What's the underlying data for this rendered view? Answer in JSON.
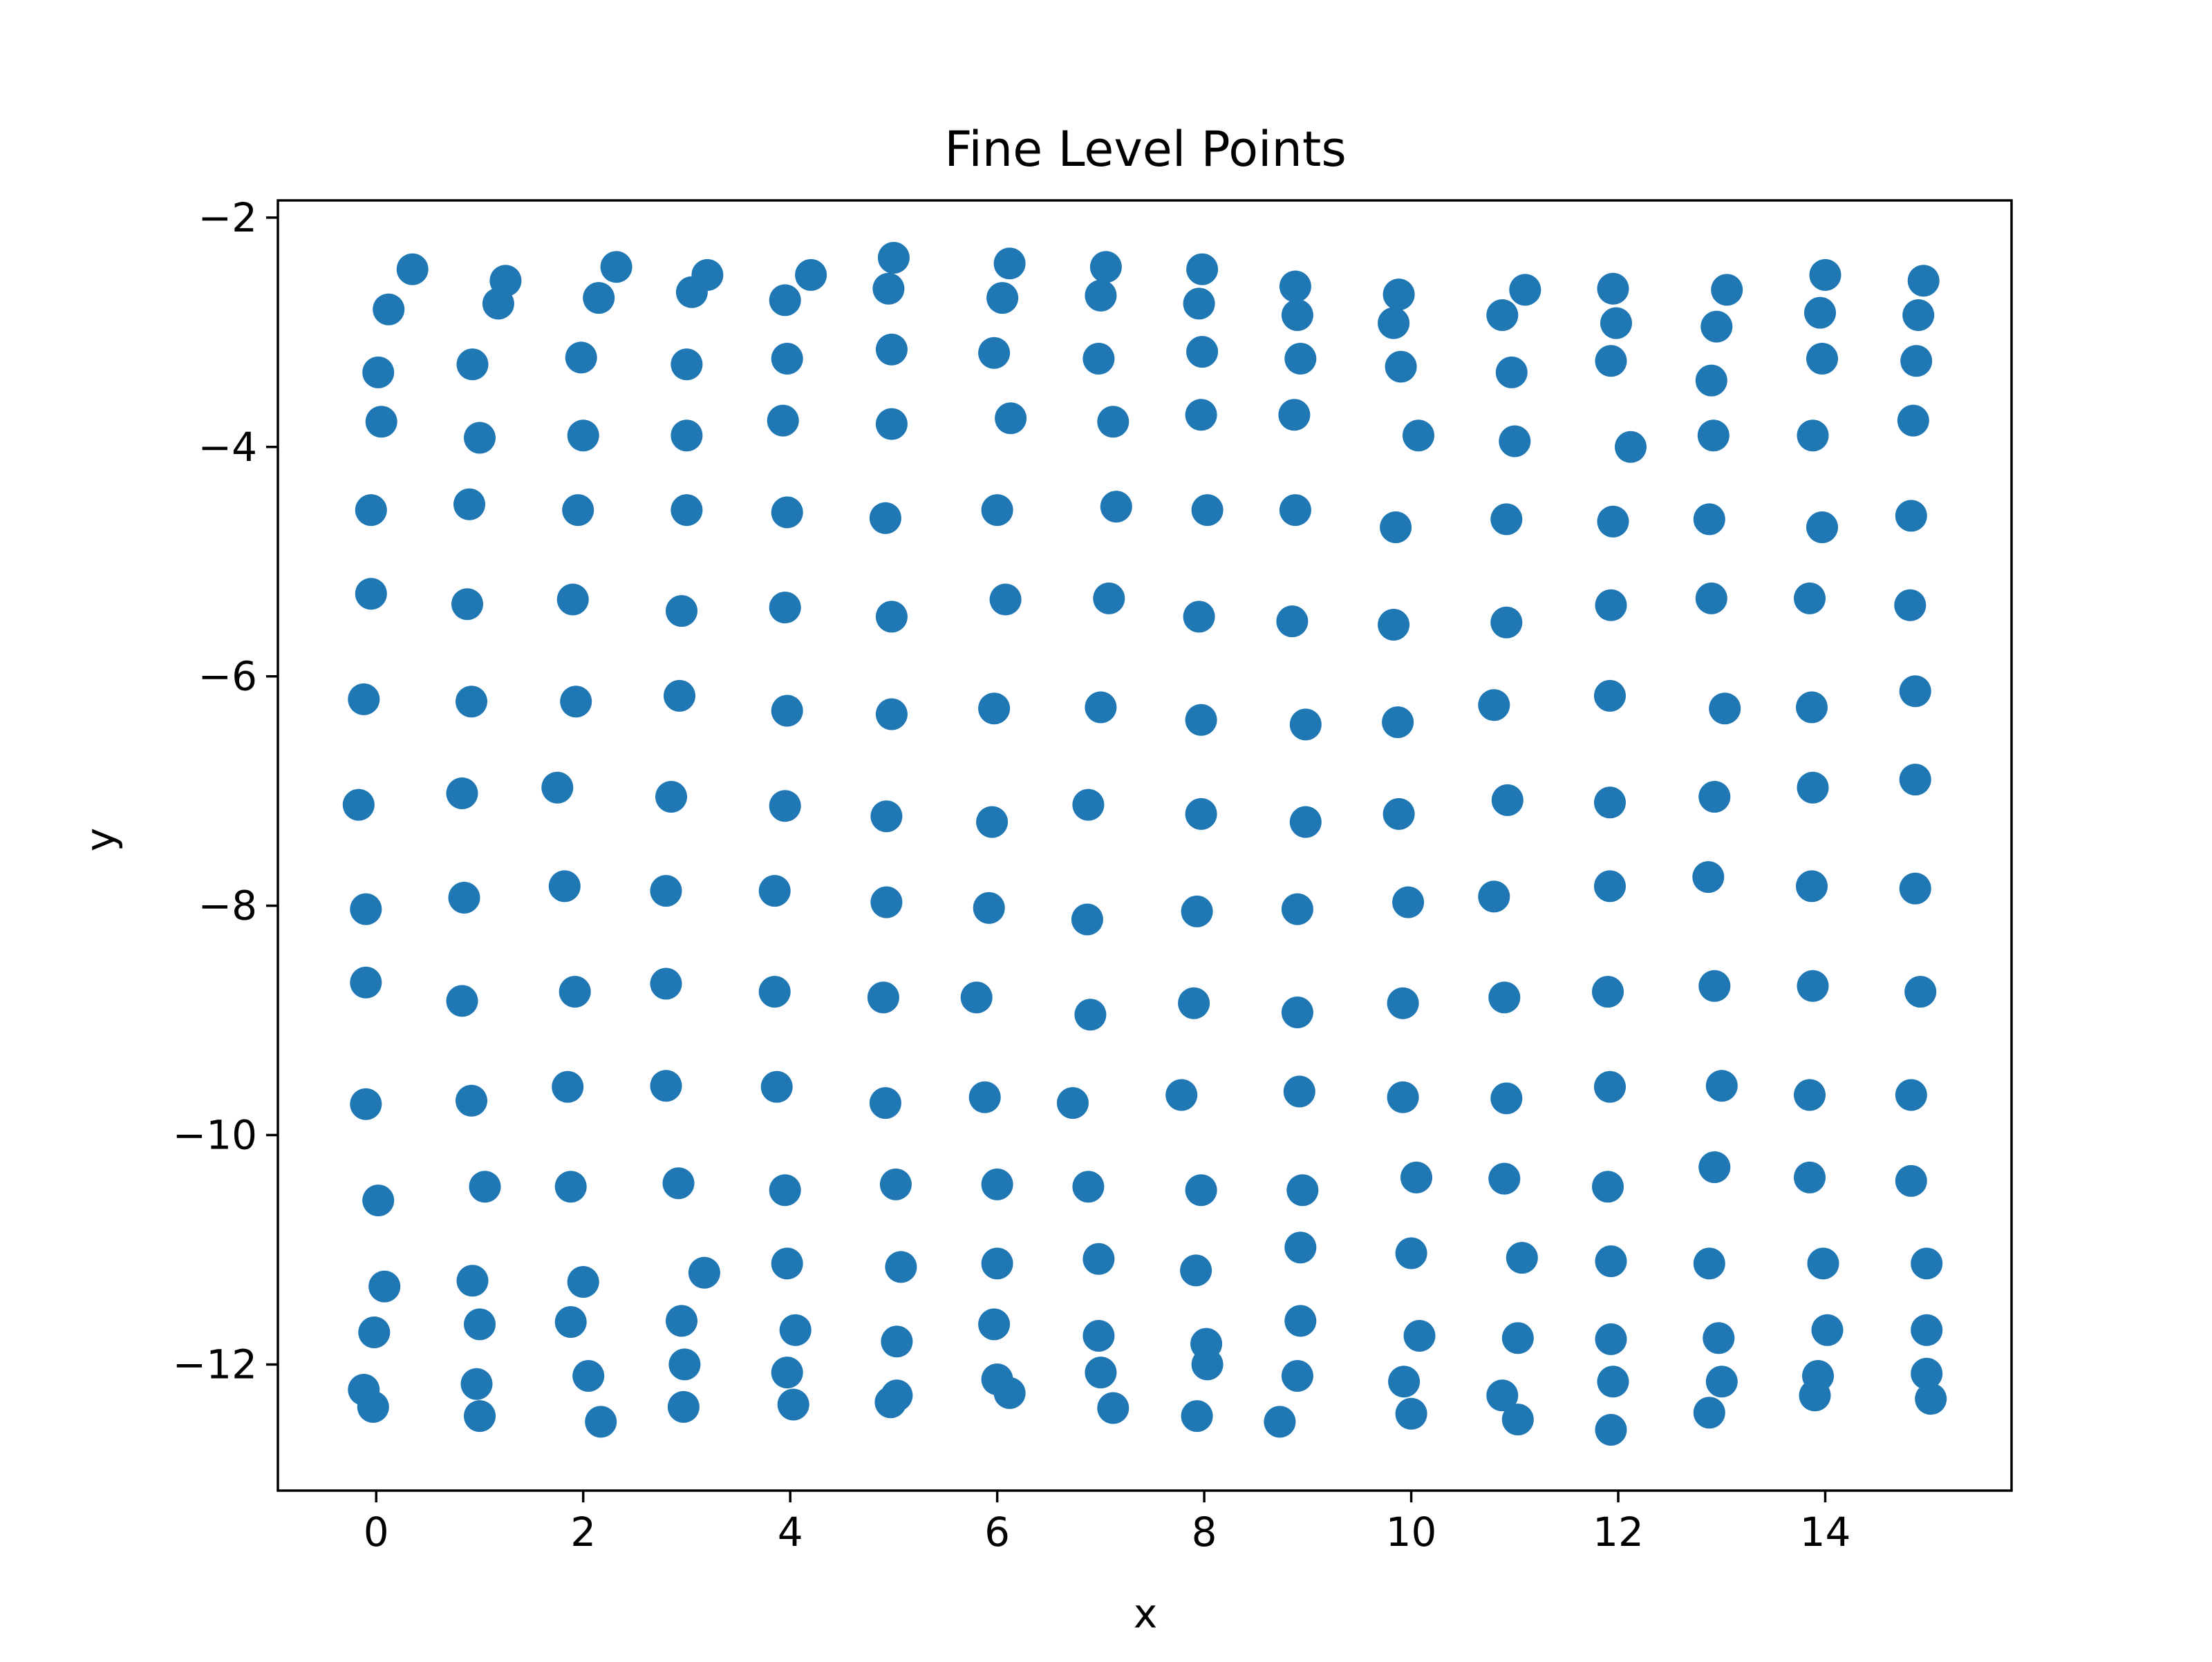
{
  "chart_data": {
    "type": "scatter",
    "title": "Fine Level Points",
    "xlabel": "x",
    "ylabel": "y",
    "xlim": [
      -0.95,
      15.8
    ],
    "ylim": [
      -13.1,
      -1.85
    ],
    "xticks": [
      0,
      2,
      4,
      6,
      8,
      10,
      12,
      14
    ],
    "yticks": [
      -2,
      -4,
      -6,
      -8,
      -10,
      -12
    ],
    "xtick_labels": [
      "0",
      "2",
      "4",
      "6",
      "8",
      "10",
      "12",
      "14"
    ],
    "ytick_labels": [
      "−2",
      "−4",
      "−6",
      "−8",
      "−10",
      "−12"
    ],
    "grid": false,
    "marker_color": "#1f77b4",
    "series": [
      {
        "points": [
          [
            0.35,
            -2.45
          ],
          [
            1.25,
            -2.55
          ],
          [
            2.32,
            -2.43
          ],
          [
            3.2,
            -2.5
          ],
          [
            4.2,
            -2.5
          ],
          [
            5.0,
            -2.35
          ],
          [
            6.12,
            -2.4
          ],
          [
            7.05,
            -2.43
          ],
          [
            7.98,
            -2.45
          ],
          [
            8.88,
            -2.6
          ],
          [
            9.88,
            -2.67
          ],
          [
            11.1,
            -2.63
          ],
          [
            11.95,
            -2.62
          ],
          [
            13.05,
            -2.63
          ],
          [
            14.0,
            -2.5
          ],
          [
            14.95,
            -2.55
          ],
          [
            0.12,
            -2.8
          ],
          [
            1.18,
            -2.75
          ],
          [
            2.15,
            -2.7
          ],
          [
            3.05,
            -2.65
          ],
          [
            3.95,
            -2.72
          ],
          [
            4.95,
            -2.62
          ],
          [
            6.05,
            -2.7
          ],
          [
            7.0,
            -2.68
          ],
          [
            7.95,
            -2.75
          ],
          [
            8.9,
            -2.85
          ],
          [
            9.83,
            -2.92
          ],
          [
            10.88,
            -2.85
          ],
          [
            11.98,
            -2.92
          ],
          [
            12.95,
            -2.95
          ],
          [
            13.95,
            -2.83
          ],
          [
            14.9,
            -2.85
          ],
          [
            0.02,
            -3.35
          ],
          [
            0.93,
            -3.28
          ],
          [
            1.98,
            -3.22
          ],
          [
            3.0,
            -3.28
          ],
          [
            3.97,
            -3.23
          ],
          [
            4.98,
            -3.15
          ],
          [
            5.97,
            -3.18
          ],
          [
            6.98,
            -3.23
          ],
          [
            7.98,
            -3.17
          ],
          [
            8.93,
            -3.23
          ],
          [
            9.9,
            -3.3
          ],
          [
            10.97,
            -3.35
          ],
          [
            11.93,
            -3.25
          ],
          [
            12.9,
            -3.42
          ],
          [
            13.97,
            -3.23
          ],
          [
            14.88,
            -3.25
          ],
          [
            0.05,
            -3.78
          ],
          [
            1.0,
            -3.92
          ],
          [
            2.0,
            -3.9
          ],
          [
            3.0,
            -3.9
          ],
          [
            3.93,
            -3.77
          ],
          [
            4.98,
            -3.8
          ],
          [
            6.13,
            -3.75
          ],
          [
            7.12,
            -3.78
          ],
          [
            7.97,
            -3.72
          ],
          [
            8.87,
            -3.72
          ],
          [
            10.07,
            -3.9
          ],
          [
            11.0,
            -3.95
          ],
          [
            12.12,
            -4.0
          ],
          [
            12.92,
            -3.9
          ],
          [
            13.88,
            -3.9
          ],
          [
            14.85,
            -3.77
          ],
          [
            -0.05,
            -4.55
          ],
          [
            0.9,
            -4.5
          ],
          [
            1.95,
            -4.55
          ],
          [
            3.0,
            -4.55
          ],
          [
            3.97,
            -4.57
          ],
          [
            4.92,
            -4.62
          ],
          [
            6.0,
            -4.55
          ],
          [
            7.15,
            -4.52
          ],
          [
            8.03,
            -4.55
          ],
          [
            8.88,
            -4.55
          ],
          [
            9.85,
            -4.7
          ],
          [
            10.92,
            -4.63
          ],
          [
            11.95,
            -4.65
          ],
          [
            12.88,
            -4.63
          ],
          [
            13.97,
            -4.7
          ],
          [
            14.83,
            -4.6
          ],
          [
            -0.05,
            -5.28
          ],
          [
            0.88,
            -5.37
          ],
          [
            1.9,
            -5.33
          ],
          [
            2.95,
            -5.43
          ],
          [
            3.95,
            -5.4
          ],
          [
            4.98,
            -5.48
          ],
          [
            6.08,
            -5.33
          ],
          [
            7.08,
            -5.32
          ],
          [
            7.95,
            -5.48
          ],
          [
            8.85,
            -5.52
          ],
          [
            9.83,
            -5.55
          ],
          [
            10.92,
            -5.53
          ],
          [
            11.93,
            -5.38
          ],
          [
            12.9,
            -5.32
          ],
          [
            13.85,
            -5.32
          ],
          [
            14.82,
            -5.38
          ],
          [
            -0.12,
            -6.2
          ],
          [
            0.92,
            -6.22
          ],
          [
            1.93,
            -6.22
          ],
          [
            2.93,
            -6.17
          ],
          [
            3.97,
            -6.3
          ],
          [
            4.98,
            -6.33
          ],
          [
            5.97,
            -6.28
          ],
          [
            7.0,
            -6.27
          ],
          [
            7.97,
            -6.38
          ],
          [
            8.98,
            -6.42
          ],
          [
            9.87,
            -6.4
          ],
          [
            10.8,
            -6.25
          ],
          [
            11.92,
            -6.17
          ],
          [
            13.03,
            -6.28
          ],
          [
            13.87,
            -6.27
          ],
          [
            14.87,
            -6.13
          ],
          [
            -0.17,
            -7.12
          ],
          [
            0.83,
            -7.02
          ],
          [
            1.75,
            -6.97
          ],
          [
            2.85,
            -7.05
          ],
          [
            3.95,
            -7.13
          ],
          [
            4.93,
            -7.22
          ],
          [
            5.95,
            -7.27
          ],
          [
            6.88,
            -7.12
          ],
          [
            7.97,
            -7.2
          ],
          [
            8.98,
            -7.27
          ],
          [
            9.88,
            -7.2
          ],
          [
            10.93,
            -7.08
          ],
          [
            11.92,
            -7.1
          ],
          [
            12.93,
            -7.05
          ],
          [
            13.88,
            -6.97
          ],
          [
            14.87,
            -6.9
          ],
          [
            -0.1,
            -8.03
          ],
          [
            0.85,
            -7.93
          ],
          [
            1.82,
            -7.83
          ],
          [
            2.8,
            -7.87
          ],
          [
            3.85,
            -7.87
          ],
          [
            4.93,
            -7.97
          ],
          [
            5.92,
            -8.02
          ],
          [
            6.87,
            -8.12
          ],
          [
            7.93,
            -8.05
          ],
          [
            8.9,
            -8.03
          ],
          [
            9.97,
            -7.97
          ],
          [
            10.8,
            -7.92
          ],
          [
            11.92,
            -7.83
          ],
          [
            12.87,
            -7.75
          ],
          [
            13.87,
            -7.83
          ],
          [
            14.87,
            -7.85
          ],
          [
            -0.1,
            -8.67
          ],
          [
            0.83,
            -8.83
          ],
          [
            1.92,
            -8.75
          ],
          [
            2.8,
            -8.68
          ],
          [
            3.85,
            -8.75
          ],
          [
            4.9,
            -8.8
          ],
          [
            5.8,
            -8.8
          ],
          [
            6.9,
            -8.95
          ],
          [
            7.9,
            -8.85
          ],
          [
            8.9,
            -8.93
          ],
          [
            9.92,
            -8.85
          ],
          [
            10.9,
            -8.8
          ],
          [
            11.9,
            -8.75
          ],
          [
            12.93,
            -8.7
          ],
          [
            13.88,
            -8.7
          ],
          [
            14.92,
            -8.75
          ],
          [
            -0.1,
            -9.73
          ],
          [
            0.92,
            -9.7
          ],
          [
            1.85,
            -9.58
          ],
          [
            2.8,
            -9.57
          ],
          [
            3.87,
            -9.58
          ],
          [
            4.92,
            -9.72
          ],
          [
            5.88,
            -9.67
          ],
          [
            6.73,
            -9.72
          ],
          [
            7.78,
            -9.65
          ],
          [
            8.92,
            -9.62
          ],
          [
            9.92,
            -9.67
          ],
          [
            10.92,
            -9.68
          ],
          [
            11.92,
            -9.58
          ],
          [
            13.0,
            -9.57
          ],
          [
            13.85,
            -9.65
          ],
          [
            14.83,
            -9.65
          ],
          [
            0.02,
            -10.57
          ],
          [
            1.05,
            -10.45
          ],
          [
            1.88,
            -10.45
          ],
          [
            2.92,
            -10.42
          ],
          [
            3.95,
            -10.48
          ],
          [
            5.02,
            -10.43
          ],
          [
            6.0,
            -10.43
          ],
          [
            6.88,
            -10.45
          ],
          [
            7.97,
            -10.48
          ],
          [
            8.95,
            -10.48
          ],
          [
            10.05,
            -10.37
          ],
          [
            10.9,
            -10.38
          ],
          [
            11.9,
            -10.45
          ],
          [
            12.93,
            -10.28
          ],
          [
            13.85,
            -10.37
          ],
          [
            14.83,
            -10.4
          ],
          [
            0.08,
            -11.32
          ],
          [
            0.93,
            -11.27
          ],
          [
            2.0,
            -11.28
          ],
          [
            3.17,
            -11.2
          ],
          [
            3.97,
            -11.12
          ],
          [
            5.07,
            -11.15
          ],
          [
            6.0,
            -11.12
          ],
          [
            6.98,
            -11.08
          ],
          [
            7.92,
            -11.18
          ],
          [
            8.93,
            -10.98
          ],
          [
            10.0,
            -11.03
          ],
          [
            11.07,
            -11.07
          ],
          [
            11.93,
            -11.1
          ],
          [
            12.88,
            -11.12
          ],
          [
            13.98,
            -11.12
          ],
          [
            14.98,
            -11.12
          ],
          [
            -0.02,
            -11.72
          ],
          [
            1.0,
            -11.65
          ],
          [
            1.88,
            -11.63
          ],
          [
            2.95,
            -11.62
          ],
          [
            4.05,
            -11.7
          ],
          [
            5.03,
            -11.8
          ],
          [
            5.97,
            -11.65
          ],
          [
            6.98,
            -11.75
          ],
          [
            8.02,
            -11.82
          ],
          [
            8.93,
            -11.62
          ],
          [
            10.08,
            -11.75
          ],
          [
            11.03,
            -11.77
          ],
          [
            11.93,
            -11.78
          ],
          [
            12.97,
            -11.77
          ],
          [
            14.02,
            -11.7
          ],
          [
            14.98,
            -11.7
          ],
          [
            -0.12,
            -12.22
          ],
          [
            0.97,
            -12.17
          ],
          [
            2.05,
            -12.1
          ],
          [
            2.98,
            -12.0
          ],
          [
            3.97,
            -12.07
          ],
          [
            5.03,
            -12.27
          ],
          [
            6.0,
            -12.13
          ],
          [
            7.0,
            -12.07
          ],
          [
            8.03,
            -12.0
          ],
          [
            8.9,
            -12.1
          ],
          [
            9.93,
            -12.15
          ],
          [
            10.88,
            -12.27
          ],
          [
            11.95,
            -12.15
          ],
          [
            13.0,
            -12.15
          ],
          [
            13.93,
            -12.1
          ],
          [
            14.98,
            -12.08
          ],
          [
            -0.03,
            -12.37
          ],
          [
            1.0,
            -12.45
          ],
          [
            2.17,
            -12.5
          ],
          [
            2.97,
            -12.37
          ],
          [
            4.03,
            -12.35
          ],
          [
            4.97,
            -12.33
          ],
          [
            6.12,
            -12.25
          ],
          [
            7.12,
            -12.38
          ],
          [
            7.93,
            -12.45
          ],
          [
            8.73,
            -12.5
          ],
          [
            10.0,
            -12.43
          ],
          [
            11.03,
            -12.48
          ],
          [
            11.93,
            -12.57
          ],
          [
            12.88,
            -12.42
          ],
          [
            13.9,
            -12.27
          ],
          [
            15.02,
            -12.3
          ]
        ]
      }
    ]
  }
}
